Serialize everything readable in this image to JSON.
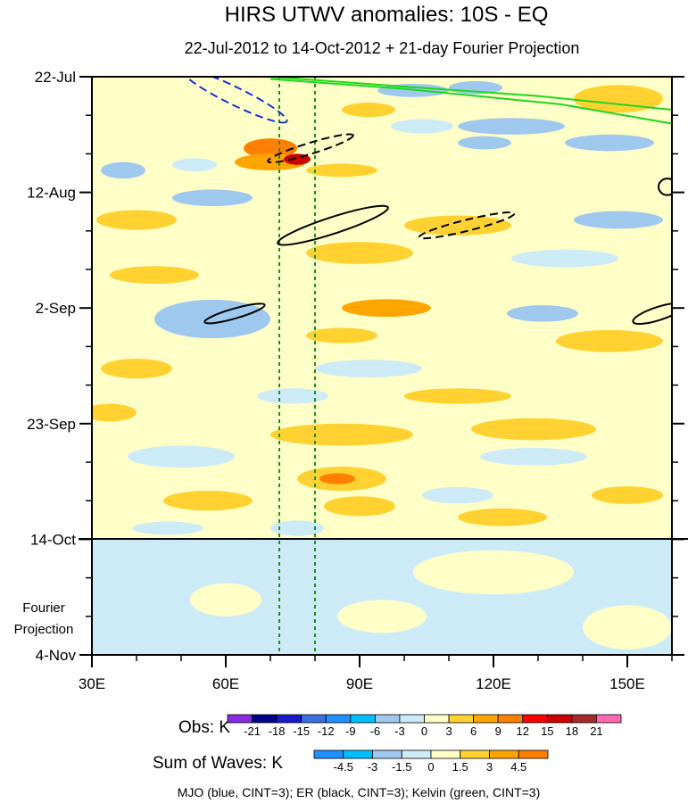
{
  "chart_data": {
    "type": "heatmap",
    "title": "HIRS UTWV anomalies: 10S - EQ",
    "subtitle": "22-Jul-2012 to 14-Oct-2012 + 21-day Fourier Projection",
    "x_ticks": [
      {
        "lon": 30,
        "label": "30E"
      },
      {
        "lon": 60,
        "label": "60E"
      },
      {
        "lon": 90,
        "label": "90E"
      },
      {
        "lon": 120,
        "label": "120E"
      },
      {
        "lon": 150,
        "label": "150E"
      }
    ],
    "xlim": [
      30,
      160
    ],
    "ylim_days": [
      0,
      105
    ],
    "y_ticks": [
      {
        "day": 0,
        "label": "22-Jul"
      },
      {
        "day": 21,
        "label": "12-Aug"
      },
      {
        "day": 42,
        "label": "2-Sep"
      },
      {
        "day": 63,
        "label": "23-Sep"
      },
      {
        "day": 84,
        "label": "14-Oct"
      },
      {
        "day": 105,
        "label": "4-Nov"
      }
    ],
    "projection_label": [
      "Fourier",
      "Projection"
    ],
    "obs_end_day": 84,
    "reference_lons": [
      72,
      80
    ],
    "obs_legend": {
      "label": "Obs: K",
      "levels": [
        "-21",
        "-18",
        "-15",
        "-12",
        "-9",
        "-6",
        "-3",
        "0",
        "3",
        "6",
        "9",
        "12",
        "15",
        "18",
        "21"
      ],
      "colors": [
        "#8a2be2",
        "#00008b",
        "#1a1acd",
        "#3b6fe0",
        "#1e90ff",
        "#00bfff",
        "#9fc8ef",
        "#cdebf7",
        "#ffffc8",
        "#ffd232",
        "#ffa500",
        "#ff7f00",
        "#ff0000",
        "#cd0000",
        "#a52a2a",
        "#ff69b4"
      ]
    },
    "waves_legend": {
      "label": "Sum of Waves: K",
      "levels": [
        "-4.5",
        "-3",
        "-1.5",
        "0",
        "1.5",
        "3",
        "4.5"
      ],
      "colors": [
        "#1e90ff",
        "#00bfff",
        "#9fc8ef",
        "#cdebf7",
        "#ffffc8",
        "#ffd232",
        "#ffa500",
        "#ff7f00"
      ]
    },
    "footnote": "MJO (blue, CINT=3); ER (black, CINT=3); Kelvin (green, CINT=3)",
    "contours": {
      "mjo": [
        {
          "lon": 62,
          "day": 3.5,
          "rx": 13,
          "ry": 1.6,
          "angle": 26,
          "style": "dashed"
        }
      ],
      "er": [
        {
          "lon": 79,
          "day": 13,
          "rx": 10,
          "ry": 1.0,
          "angle": -17,
          "style": "dashed"
        },
        {
          "lon": 84,
          "day": 27,
          "rx": 13,
          "ry": 1.5,
          "angle": -18,
          "style": "solid"
        },
        {
          "lon": 114,
          "day": 27,
          "rx": 11,
          "ry": 1.0,
          "angle": -14,
          "style": "dashed"
        },
        {
          "lon": 62,
          "day": 43,
          "rx": 7,
          "ry": 0.9,
          "angle": -16,
          "style": "solid"
        },
        {
          "lon": 159,
          "day": 20,
          "rx": 2,
          "ry": 1.5,
          "angle": 0,
          "style": "solid"
        },
        {
          "lon": 157,
          "day": 43,
          "rx": 6,
          "ry": 1.2,
          "angle": -18,
          "style": "solid"
        }
      ],
      "kelvin": [
        {
          "points": [
            [
              70,
              0
            ],
            [
              95,
              1.5
            ],
            [
              130,
              3.5
            ],
            [
              160,
              6.0
            ]
          ]
        },
        {
          "points": [
            [
              70,
              0.4
            ],
            [
              100,
              2.2
            ],
            [
              135,
              5.0
            ],
            [
              160,
              8.5
            ]
          ]
        }
      ]
    },
    "patches": [
      {
        "lon": 102,
        "day": 2.5,
        "rx": 8,
        "ry": 1.2,
        "value": -4.5
      },
      {
        "lon": 116,
        "day": 2,
        "rx": 6,
        "ry": 1.2,
        "value": -4.5
      },
      {
        "lon": 92,
        "day": 6,
        "rx": 6,
        "ry": 1.3,
        "value": 4.5
      },
      {
        "lon": 124,
        "day": 9,
        "rx": 12,
        "ry": 1.5,
        "value": -4.5
      },
      {
        "lon": 104,
        "day": 9,
        "rx": 7,
        "ry": 1.3,
        "value": -1.5
      },
      {
        "lon": 148,
        "day": 4,
        "rx": 10,
        "ry": 2.5,
        "value": 3
      },
      {
        "lon": 118,
        "day": 12,
        "rx": 6,
        "ry": 1.2,
        "value": -6
      },
      {
        "lon": 146,
        "day": 12,
        "rx": 10,
        "ry": 1.5,
        "value": -4.5
      },
      {
        "lon": 70,
        "day": 13,
        "rx": 6,
        "ry": 1.8,
        "value": 9
      },
      {
        "lon": 70,
        "day": 15.5,
        "rx": 8,
        "ry": 1.5,
        "value": 6
      },
      {
        "lon": 76,
        "day": 15,
        "rx": 3,
        "ry": 1.0,
        "value": 15
      },
      {
        "lon": 53,
        "day": 16,
        "rx": 5,
        "ry": 1.2,
        "value": -3
      },
      {
        "lon": 37,
        "day": 17,
        "rx": 5,
        "ry": 1.5,
        "value": -4.5
      },
      {
        "lon": 86,
        "day": 17,
        "rx": 8,
        "ry": 1.2,
        "value": 3
      },
      {
        "lon": 57,
        "day": 22,
        "rx": 9,
        "ry": 1.5,
        "value": -4.5
      },
      {
        "lon": 40,
        "day": 26,
        "rx": 9,
        "ry": 1.8,
        "value": 4.5
      },
      {
        "lon": 112,
        "day": 27,
        "rx": 12,
        "ry": 1.8,
        "value": 3
      },
      {
        "lon": 148,
        "day": 26,
        "rx": 10,
        "ry": 1.6,
        "value": -4.5
      },
      {
        "lon": 90,
        "day": 32,
        "rx": 12,
        "ry": 2.0,
        "value": 4.5
      },
      {
        "lon": 136,
        "day": 33,
        "rx": 12,
        "ry": 1.6,
        "value": -1.5
      },
      {
        "lon": 44,
        "day": 36,
        "rx": 10,
        "ry": 1.6,
        "value": 3
      },
      {
        "lon": 57,
        "day": 44,
        "rx": 13,
        "ry": 3.5,
        "value": -4.5
      },
      {
        "lon": 58,
        "day": 45,
        "rx": 7,
        "ry": 2.2,
        "value": -6
      },
      {
        "lon": 96,
        "day": 42,
        "rx": 10,
        "ry": 1.6,
        "value": 6
      },
      {
        "lon": 131,
        "day": 43,
        "rx": 8,
        "ry": 1.5,
        "value": -4.5
      },
      {
        "lon": 146,
        "day": 48,
        "rx": 12,
        "ry": 2.0,
        "value": 3
      },
      {
        "lon": 86,
        "day": 47,
        "rx": 8,
        "ry": 1.4,
        "value": 3
      },
      {
        "lon": 40,
        "day": 53,
        "rx": 8,
        "ry": 1.8,
        "value": 3
      },
      {
        "lon": 92,
        "day": 53,
        "rx": 12,
        "ry": 1.6,
        "value": -3
      },
      {
        "lon": 112,
        "day": 58,
        "rx": 12,
        "ry": 1.4,
        "value": 3
      },
      {
        "lon": 75,
        "day": 58,
        "rx": 8,
        "ry": 1.4,
        "value": -1.5
      },
      {
        "lon": 34,
        "day": 61,
        "rx": 6,
        "ry": 1.6,
        "value": 4.5
      },
      {
        "lon": 86,
        "day": 65,
        "rx": 16,
        "ry": 2.0,
        "value": 3
      },
      {
        "lon": 129,
        "day": 64,
        "rx": 14,
        "ry": 2.0,
        "value": 4.5
      },
      {
        "lon": 50,
        "day": 69,
        "rx": 12,
        "ry": 2.0,
        "value": -1.5
      },
      {
        "lon": 129,
        "day": 69,
        "rx": 12,
        "ry": 1.6,
        "value": -1.5
      },
      {
        "lon": 86,
        "day": 73,
        "rx": 10,
        "ry": 2.2,
        "value": 4.5
      },
      {
        "lon": 85,
        "day": 73,
        "rx": 4,
        "ry": 1.0,
        "value": 9
      },
      {
        "lon": 112,
        "day": 76,
        "rx": 8,
        "ry": 1.5,
        "value": -3
      },
      {
        "lon": 56,
        "day": 77,
        "rx": 10,
        "ry": 1.8,
        "value": 3
      },
      {
        "lon": 90,
        "day": 78,
        "rx": 8,
        "ry": 1.8,
        "value": 4.5
      },
      {
        "lon": 122,
        "day": 80,
        "rx": 10,
        "ry": 1.6,
        "value": 3
      },
      {
        "lon": 150,
        "day": 76,
        "rx": 8,
        "ry": 1.6,
        "value": 3
      },
      {
        "lon": 76,
        "day": 82,
        "rx": 6,
        "ry": 1.4,
        "value": -3
      },
      {
        "lon": 47,
        "day": 82,
        "rx": 8,
        "ry": 1.2,
        "value": -3
      }
    ]
  }
}
